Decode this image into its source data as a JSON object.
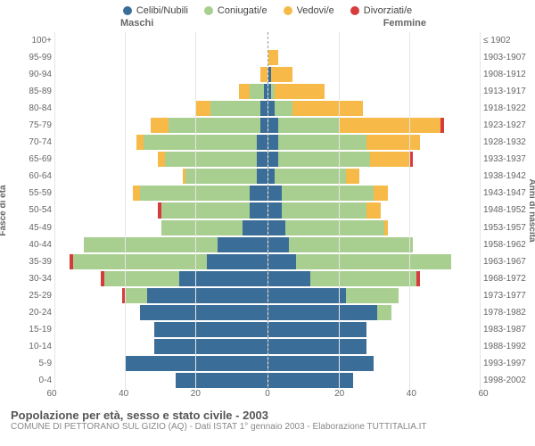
{
  "legend": [
    {
      "label": "Celibi/Nubili",
      "color": "#3b6d99"
    },
    {
      "label": "Coniugati/e",
      "color": "#a8cf8f"
    },
    {
      "label": "Vedovi/e",
      "color": "#f7ba48"
    },
    {
      "label": "Divorziati/e",
      "color": "#d73c3c"
    }
  ],
  "labels": {
    "male": "Maschi",
    "female": "Femmine",
    "yleft": "Fasce di età",
    "yright": "Anni di nascita"
  },
  "axis": {
    "max": 60,
    "ticks": [
      60,
      40,
      20,
      0,
      20,
      40,
      60
    ]
  },
  "colors": {
    "single": "#3b6d99",
    "married": "#a8cf8f",
    "widowed": "#f7ba48",
    "divorced": "#d73c3c",
    "grid": "#e5e5e5",
    "centerline": "#999999",
    "background": "#ffffff"
  },
  "rows": [
    {
      "age": "100+",
      "birth": "≤ 1902",
      "m": {
        "s": 0,
        "c": 0,
        "w": 0,
        "d": 0
      },
      "f": {
        "s": 0,
        "c": 0,
        "w": 0,
        "d": 0
      }
    },
    {
      "age": "95-99",
      "birth": "1903-1907",
      "m": {
        "s": 0,
        "c": 0,
        "w": 0,
        "d": 0
      },
      "f": {
        "s": 0,
        "c": 0,
        "w": 3,
        "d": 0
      }
    },
    {
      "age": "90-94",
      "birth": "1908-1912",
      "m": {
        "s": 0,
        "c": 0,
        "w": 2,
        "d": 0
      },
      "f": {
        "s": 1,
        "c": 0,
        "w": 6,
        "d": 0
      }
    },
    {
      "age": "85-89",
      "birth": "1913-1917",
      "m": {
        "s": 1,
        "c": 4,
        "w": 3,
        "d": 0
      },
      "f": {
        "s": 1,
        "c": 1,
        "w": 14,
        "d": 0
      }
    },
    {
      "age": "80-84",
      "birth": "1918-1922",
      "m": {
        "s": 2,
        "c": 14,
        "w": 4,
        "d": 0
      },
      "f": {
        "s": 2,
        "c": 5,
        "w": 20,
        "d": 0
      }
    },
    {
      "age": "75-79",
      "birth": "1923-1927",
      "m": {
        "s": 2,
        "c": 26,
        "w": 5,
        "d": 0
      },
      "f": {
        "s": 3,
        "c": 17,
        "w": 29,
        "d": 1
      }
    },
    {
      "age": "70-74",
      "birth": "1928-1932",
      "m": {
        "s": 3,
        "c": 32,
        "w": 2,
        "d": 0
      },
      "f": {
        "s": 3,
        "c": 25,
        "w": 15,
        "d": 0
      }
    },
    {
      "age": "65-69",
      "birth": "1933-1937",
      "m": {
        "s": 3,
        "c": 26,
        "w": 2,
        "d": 0
      },
      "f": {
        "s": 3,
        "c": 26,
        "w": 11,
        "d": 1
      }
    },
    {
      "age": "60-64",
      "birth": "1938-1942",
      "m": {
        "s": 3,
        "c": 20,
        "w": 1,
        "d": 0
      },
      "f": {
        "s": 2,
        "c": 20,
        "w": 4,
        "d": 0
      }
    },
    {
      "age": "55-59",
      "birth": "1943-1947",
      "m": {
        "s": 5,
        "c": 31,
        "w": 2,
        "d": 0
      },
      "f": {
        "s": 4,
        "c": 26,
        "w": 4,
        "d": 0
      }
    },
    {
      "age": "50-54",
      "birth": "1948-1952",
      "m": {
        "s": 5,
        "c": 25,
        "w": 0,
        "d": 1
      },
      "f": {
        "s": 4,
        "c": 24,
        "w": 4,
        "d": 0
      }
    },
    {
      "age": "45-49",
      "birth": "1953-1957",
      "m": {
        "s": 7,
        "c": 23,
        "w": 0,
        "d": 0
      },
      "f": {
        "s": 5,
        "c": 28,
        "w": 1,
        "d": 0
      }
    },
    {
      "age": "40-44",
      "birth": "1958-1962",
      "m": {
        "s": 14,
        "c": 38,
        "w": 0,
        "d": 0
      },
      "f": {
        "s": 6,
        "c": 35,
        "w": 0,
        "d": 0
      }
    },
    {
      "age": "35-39",
      "birth": "1963-1967",
      "m": {
        "s": 17,
        "c": 38,
        "w": 0,
        "d": 1
      },
      "f": {
        "s": 8,
        "c": 44,
        "w": 0,
        "d": 0
      }
    },
    {
      "age": "30-34",
      "birth": "1968-1972",
      "m": {
        "s": 25,
        "c": 21,
        "w": 0,
        "d": 1
      },
      "f": {
        "s": 12,
        "c": 30,
        "w": 0,
        "d": 1
      }
    },
    {
      "age": "25-29",
      "birth": "1973-1977",
      "m": {
        "s": 34,
        "c": 6,
        "w": 0,
        "d": 1
      },
      "f": {
        "s": 22,
        "c": 15,
        "w": 0,
        "d": 0
      }
    },
    {
      "age": "20-24",
      "birth": "1978-1982",
      "m": {
        "s": 36,
        "c": 0,
        "w": 0,
        "d": 0
      },
      "f": {
        "s": 31,
        "c": 4,
        "w": 0,
        "d": 0
      }
    },
    {
      "age": "15-19",
      "birth": "1983-1987",
      "m": {
        "s": 32,
        "c": 0,
        "w": 0,
        "d": 0
      },
      "f": {
        "s": 28,
        "c": 0,
        "w": 0,
        "d": 0
      }
    },
    {
      "age": "10-14",
      "birth": "1988-1992",
      "m": {
        "s": 32,
        "c": 0,
        "w": 0,
        "d": 0
      },
      "f": {
        "s": 28,
        "c": 0,
        "w": 0,
        "d": 0
      }
    },
    {
      "age": "5-9",
      "birth": "1993-1997",
      "m": {
        "s": 40,
        "c": 0,
        "w": 0,
        "d": 0
      },
      "f": {
        "s": 30,
        "c": 0,
        "w": 0,
        "d": 0
      }
    },
    {
      "age": "0-4",
      "birth": "1998-2002",
      "m": {
        "s": 26,
        "c": 0,
        "w": 0,
        "d": 0
      },
      "f": {
        "s": 24,
        "c": 0,
        "w": 0,
        "d": 0
      }
    }
  ],
  "footer": {
    "title": "Popolazione per età, sesso e stato civile - 2003",
    "subtitle": "COMUNE DI PETTORANO SUL GIZIO (AQ) - Dati ISTAT 1° gennaio 2003 - Elaborazione TUTTITALIA.IT"
  }
}
